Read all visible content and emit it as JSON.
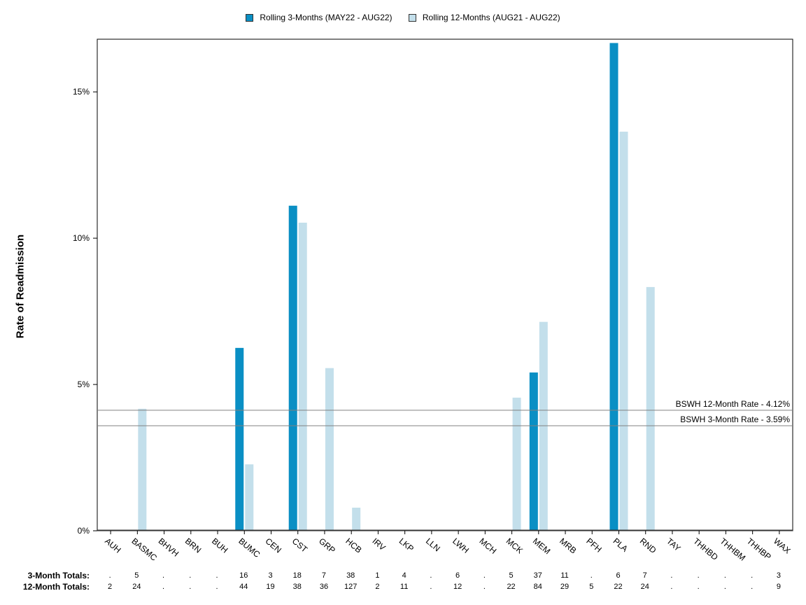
{
  "legend": {
    "series1": "Rolling 3-Months (MAY22 - AUG22)",
    "series2": "Rolling 12-Months (AUG21 - AUG22)"
  },
  "colors": {
    "series1": "#0a8fc4",
    "series2": "#c3dfeb",
    "refline": "#808080"
  },
  "totals": {
    "label3": "3-Month Totals:",
    "label12": "12-Month Totals:",
    "three_month": [
      ".",
      "5",
      ".",
      ".",
      ".",
      "16",
      "3",
      "18",
      "7",
      "38",
      "1",
      "4",
      ".",
      "6",
      ".",
      "5",
      "37",
      "11",
      ".",
      "6",
      "7",
      ".",
      ".",
      ".",
      ".",
      "3"
    ],
    "twelve_month": [
      "2",
      "24",
      ".",
      ".",
      ".",
      "44",
      "19",
      "38",
      "36",
      "127",
      "2",
      "11",
      ".",
      "12",
      ".",
      "22",
      "84",
      "29",
      "5",
      "22",
      "24",
      ".",
      ".",
      ".",
      ".",
      "9"
    ]
  },
  "chart_data": {
    "type": "bar",
    "ylabel": "Rate of Readmission",
    "xlabel": "",
    "ylim": [
      0,
      16.8
    ],
    "yticks": [
      0,
      5,
      10,
      15
    ],
    "ytick_labels": [
      "0%",
      "5%",
      "10%",
      "15%"
    ],
    "grid": false,
    "legend_position": "top",
    "categories": [
      "AUH",
      "BASMC",
      "BHVH",
      "BRN",
      "BUH",
      "BUMC",
      "CEN",
      "CST",
      "GRP",
      "HCB",
      "IRV",
      "LKP",
      "LLN",
      "LWH",
      "MCH",
      "MCK",
      "MEM",
      "MRB",
      "PFH",
      "PLA",
      "RND",
      "TAY",
      "THHBD",
      "THHBM",
      "THHBP",
      "WAX"
    ],
    "series": [
      {
        "name": "Rolling 3-Months (MAY22 - AUG22)",
        "values": [
          0,
          0,
          0,
          0,
          0,
          6.25,
          0,
          11.11,
          0,
          0,
          0,
          0,
          0,
          0,
          0,
          0,
          5.41,
          0,
          0,
          16.67,
          0,
          0,
          0,
          0,
          0,
          0
        ]
      },
      {
        "name": "Rolling 12-Months (AUG21 - AUG22)",
        "values": [
          0,
          4.17,
          0,
          0,
          0,
          2.27,
          0,
          10.53,
          5.56,
          0.79,
          0,
          0,
          0,
          0,
          0,
          4.55,
          7.14,
          0,
          0,
          13.64,
          8.33,
          0,
          0,
          0,
          0,
          0
        ]
      }
    ],
    "reference_lines": [
      {
        "label": "BSWH 12-Month Rate - 4.12%",
        "value": 4.12
      },
      {
        "label": "BSWH  3-Month Rate - 3.59%",
        "value": 3.59
      }
    ]
  }
}
